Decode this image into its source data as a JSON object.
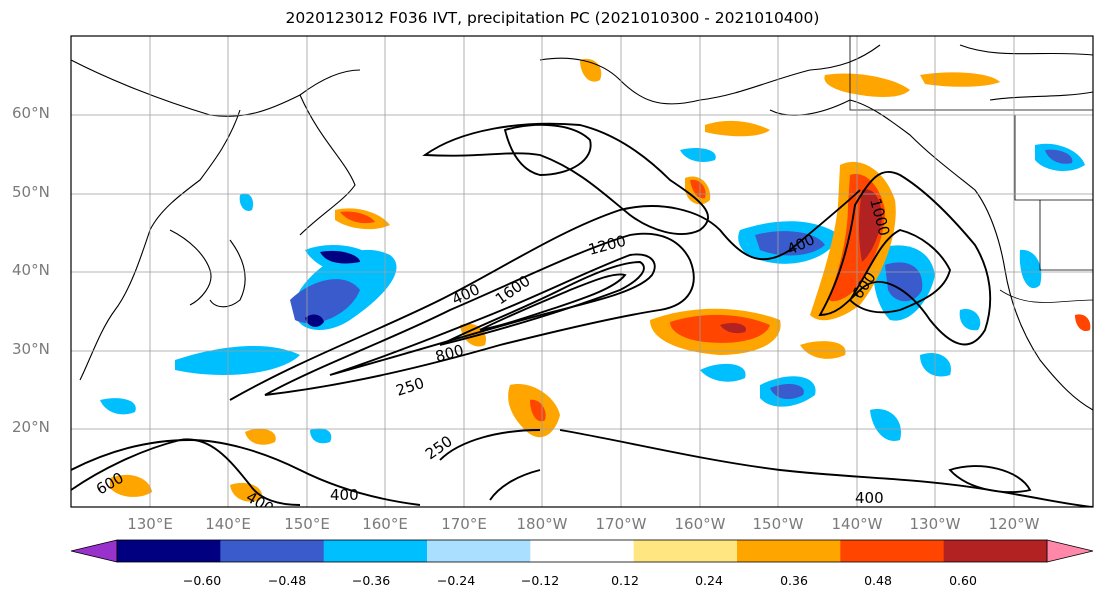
{
  "title": "2020123012 F036 IVT, precipitation PC (2021010300 - 2021010400)",
  "lat_labels": [
    "60°N",
    "50°N",
    "40°N",
    "30°N",
    "20°N"
  ],
  "lon_labels": [
    "130°E",
    "140°E",
    "150°E",
    "160°E",
    "170°E",
    "180°W",
    "170°W",
    "160°W",
    "150°W",
    "140°W",
    "130°W",
    "120°W"
  ],
  "contour_labels": [
    "400",
    "800",
    "1200",
    "1600",
    "250",
    "250",
    "400",
    "400",
    "600",
    "400",
    "1000",
    "400",
    "600"
  ],
  "colorbar": {
    "colors": [
      "#9932cc",
      "#000080",
      "#3a5bcc",
      "#00bfff",
      "#aadfff",
      "#ffffff",
      "#ffe680",
      "#ffa500",
      "#ff4500",
      "#b22222",
      "#ff88aa"
    ],
    "ticks": [
      "−0.60",
      "−0.48",
      "−0.36",
      "−0.24",
      "−0.12",
      "0.12",
      "0.24",
      "0.36",
      "0.48",
      "0.60"
    ]
  }
}
